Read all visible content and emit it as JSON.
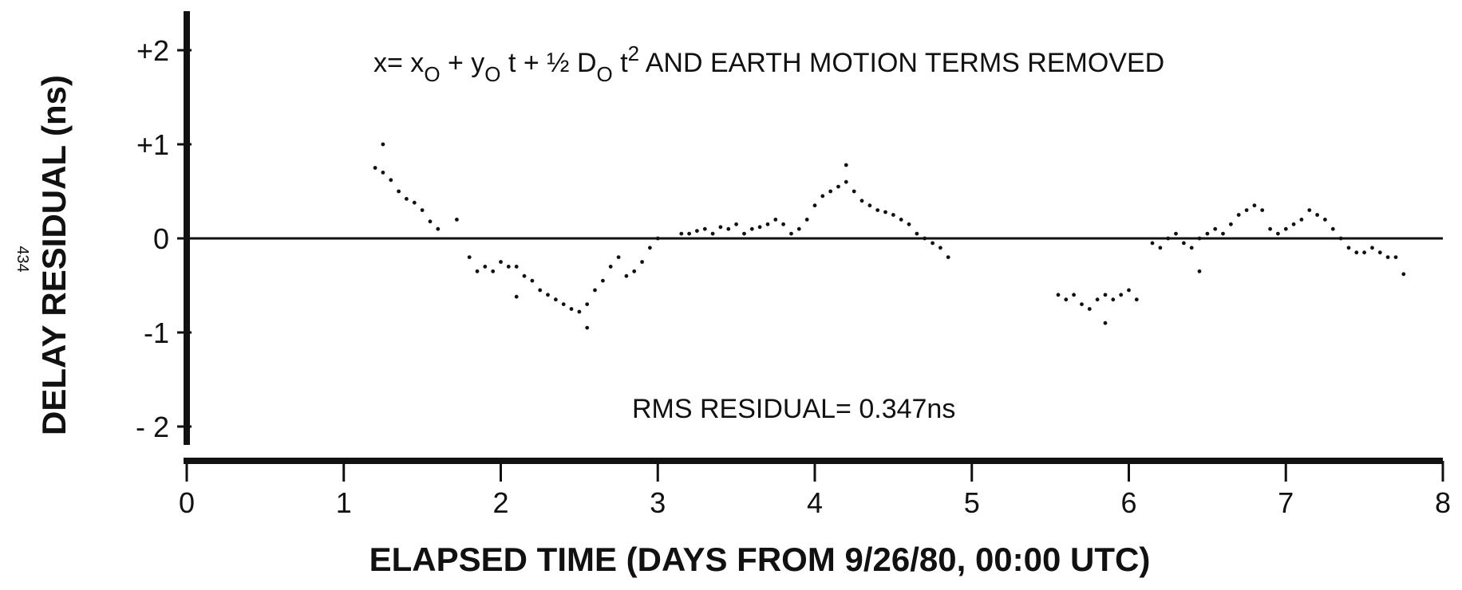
{
  "page_number": "434",
  "chart_data": {
    "type": "scatter",
    "title": "",
    "xlabel": "ELAPSED TIME (DAYS FROM 9/26/80, 00:00 UTC)",
    "ylabel": "DELAY RESIDUAL (ns)",
    "xlim": [
      0,
      8
    ],
    "ylim": [
      -2.2,
      2.4
    ],
    "x_ticks": [
      0,
      1,
      2,
      3,
      4,
      5,
      6,
      7,
      8
    ],
    "x_tick_labels": [
      "0",
      "1",
      "2",
      "3",
      "4",
      "5",
      "6",
      "7",
      "8"
    ],
    "y_ticks": [
      2,
      1,
      0,
      -1,
      -2
    ],
    "y_tick_labels": [
      "+2",
      "+1",
      "0",
      "-1",
      "- 2"
    ],
    "reference_line_y": 0,
    "grid": false,
    "annotations": {
      "formula": {
        "x_eq": "x= x",
        "x_sub": "O",
        "plus_y": " + y",
        "y_sub": "O",
        "t_half_D": " t + ½ D",
        "D_sub": "O",
        "t": " t",
        "t_sup": "2",
        "tail": "  AND EARTH MOTION TERMS REMOVED"
      },
      "rms": "RMS RESIDUAL= 0.347ns"
    },
    "segments": [
      {
        "x": [
          1.2,
          1.25,
          1.3,
          1.35,
          1.4,
          1.45,
          1.5,
          1.55,
          1.6
        ],
        "y": [
          0.75,
          0.7,
          0.62,
          0.5,
          0.42,
          0.38,
          0.3,
          0.18,
          0.1
        ]
      },
      {
        "x": [
          1.72,
          1.8,
          1.85,
          1.9,
          1.95,
          2.0,
          2.05,
          2.1,
          2.15,
          2.2,
          2.25,
          2.3,
          2.35,
          2.4,
          2.45,
          2.5,
          2.55,
          2.6,
          2.65,
          2.7,
          2.75,
          2.8,
          2.85,
          2.9,
          2.95,
          3.0
        ],
        "y": [
          0.2,
          -0.2,
          -0.35,
          -0.3,
          -0.35,
          -0.25,
          -0.3,
          -0.3,
          -0.4,
          -0.45,
          -0.55,
          -0.6,
          -0.65,
          -0.7,
          -0.75,
          -0.78,
          -0.7,
          -0.55,
          -0.45,
          -0.3,
          -0.2,
          -0.4,
          -0.35,
          -0.25,
          -0.1,
          0.0
        ]
      },
      {
        "x": [
          3.15,
          3.2,
          3.25,
          3.3,
          3.35,
          3.4,
          3.45,
          3.5,
          3.55,
          3.6,
          3.65,
          3.7,
          3.75,
          3.8,
          3.85,
          3.9
        ],
        "y": [
          0.05,
          0.05,
          0.08,
          0.1,
          0.05,
          0.12,
          0.1,
          0.15,
          0.05,
          0.1,
          0.12,
          0.15,
          0.2,
          0.15,
          0.05,
          0.1
        ]
      },
      {
        "x": [
          3.95,
          4.0,
          4.05,
          4.1,
          4.15,
          4.2,
          4.25,
          4.3,
          4.35,
          4.4,
          4.45,
          4.5,
          4.55,
          4.6,
          4.65,
          4.7,
          4.75,
          4.8,
          4.85
        ],
        "y": [
          0.2,
          0.35,
          0.45,
          0.5,
          0.55,
          0.6,
          0.5,
          0.4,
          0.35,
          0.3,
          0.28,
          0.25,
          0.2,
          0.15,
          0.05,
          0.0,
          -0.05,
          -0.1,
          -0.2
        ]
      },
      {
        "x": [
          5.55,
          5.6,
          5.65,
          5.7,
          5.75,
          5.8,
          5.85,
          5.9,
          5.95,
          6.0,
          6.05
        ],
        "y": [
          -0.6,
          -0.65,
          -0.6,
          -0.7,
          -0.75,
          -0.65,
          -0.6,
          -0.65,
          -0.6,
          -0.55,
          -0.65
        ]
      },
      {
        "x": [
          6.15,
          6.2,
          6.25,
          6.3,
          6.35,
          6.4,
          6.45,
          6.5,
          6.55,
          6.6,
          6.65,
          6.7,
          6.75,
          6.8,
          6.85,
          6.9,
          6.95,
          7.0,
          7.05,
          7.1,
          7.15,
          7.2,
          7.25,
          7.3,
          7.35,
          7.4,
          7.45,
          7.5,
          7.55,
          7.6,
          7.65,
          7.7
        ],
        "y": [
          -0.05,
          -0.1,
          0.0,
          0.05,
          -0.05,
          -0.1,
          0.0,
          0.05,
          0.1,
          0.05,
          0.15,
          0.25,
          0.3,
          0.35,
          0.3,
          0.1,
          0.05,
          0.1,
          0.15,
          0.2,
          0.3,
          0.25,
          0.2,
          0.1,
          0.0,
          -0.1,
          -0.15,
          -0.15,
          -0.1,
          -0.15,
          -0.2,
          -0.2
        ]
      }
    ],
    "outliers": [
      {
        "x": 1.25,
        "y": 1.0
      },
      {
        "x": 2.1,
        "y": -0.62
      },
      {
        "x": 2.55,
        "y": -0.95
      },
      {
        "x": 4.2,
        "y": 0.78
      },
      {
        "x": 5.85,
        "y": -0.9
      },
      {
        "x": 6.45,
        "y": -0.35
      },
      {
        "x": 7.75,
        "y": -0.38
      }
    ]
  }
}
